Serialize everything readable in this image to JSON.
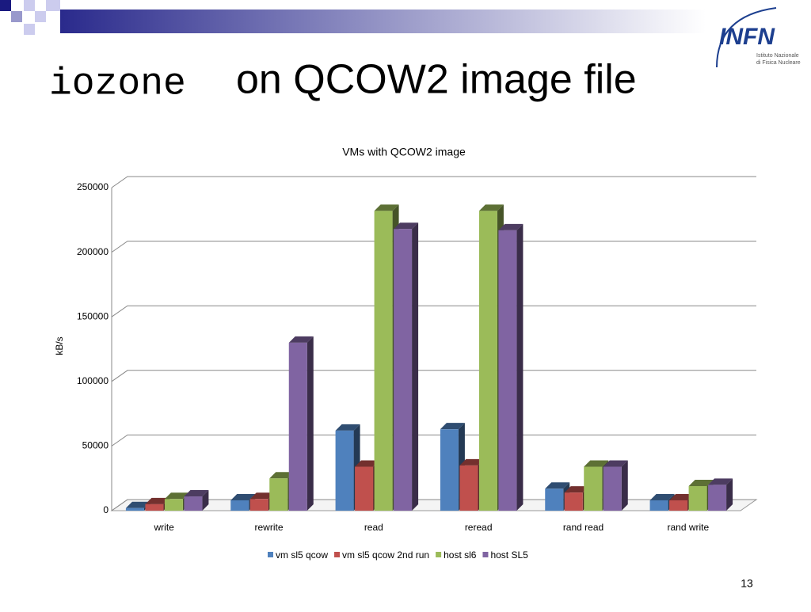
{
  "slide": {
    "title_code": "iozone",
    "title_rest": "on QCOW2 image file",
    "logo": "INFN",
    "logo_sub1": "Istituto Nazionale",
    "logo_sub2": "di Fisica Nucleare",
    "page_number": "13"
  },
  "chart_data": {
    "type": "bar3d",
    "title": "VMs with QCOW2 image",
    "y_label": "kB/s",
    "categories": [
      "write",
      "rewrite",
      "read",
      "reread",
      "rand read",
      "rand write"
    ],
    "series": [
      {
        "name": "vm sl5 qcow",
        "color": "#4f81bd",
        "values": [
          2000,
          8000,
          62000,
          63000,
          17000,
          8000
        ]
      },
      {
        "name": "vm sl5 qcow 2nd run",
        "color": "#c0504d",
        "values": [
          5000,
          9000,
          34000,
          35000,
          14000,
          8000
        ]
      },
      {
        "name": "host sl6",
        "color": "#9bbb59",
        "values": [
          9000,
          25000,
          232000,
          232000,
          34000,
          19000
        ]
      },
      {
        "name": "host SL5",
        "color": "#8064a2",
        "values": [
          11000,
          130000,
          218000,
          217000,
          34000,
          20000
        ]
      }
    ],
    "ylim": [
      0,
      250000
    ],
    "yticks": [
      0,
      50000,
      100000,
      150000,
      200000,
      250000
    ],
    "grid": true,
    "legend": "bottom"
  }
}
